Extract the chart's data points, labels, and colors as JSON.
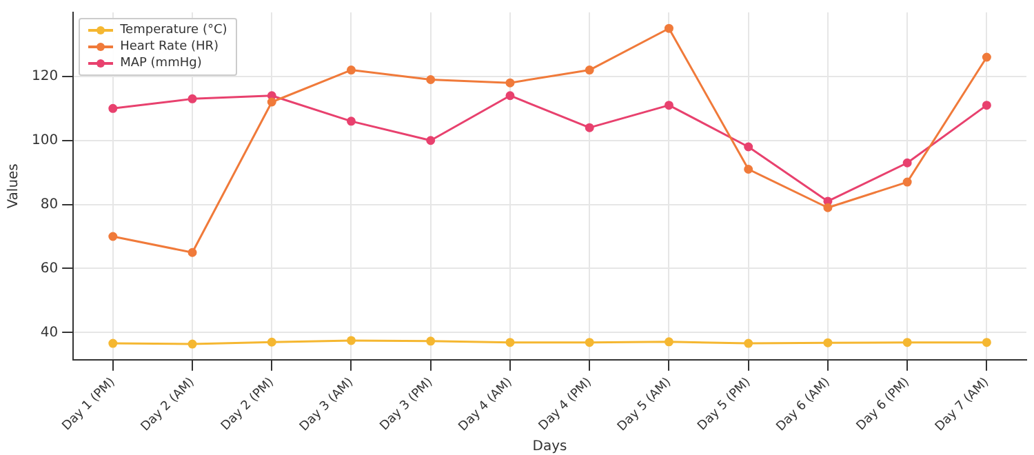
{
  "chart_data": {
    "type": "line",
    "xlabel": "Days",
    "ylabel": "Values",
    "categories": [
      "Day 1 (PM)",
      "Day 2 (AM)",
      "Day 2 (PM)",
      "Day 3 (AM)",
      "Day 3 (PM)",
      "Day 4 (AM)",
      "Day 4 (PM)",
      "Day 5 (AM)",
      "Day 5 (PM)",
      "Day 6 (AM)",
      "Day 6 (PM)",
      "Day 7 (AM)"
    ],
    "series": [
      {
        "name": "Temperature (°C)",
        "color": "#f5b731",
        "values": [
          36.6,
          36.4,
          37.0,
          37.5,
          37.3,
          36.9,
          36.9,
          37.1,
          36.6,
          36.8,
          36.9,
          36.9
        ]
      },
      {
        "name": "Heart Rate (HR)",
        "color": "#f07a3a",
        "values": [
          70,
          65,
          112,
          122,
          119,
          118,
          122,
          135,
          91,
          79,
          87,
          126
        ]
      },
      {
        "name": "MAP (mmHg)",
        "color": "#e8416e",
        "values": [
          110,
          113,
          114,
          106,
          100,
          114,
          104,
          111,
          98,
          81,
          93,
          111
        ]
      }
    ],
    "ylim": [
      31.5,
      140
    ],
    "yticks": [
      40,
      60,
      80,
      100,
      120
    ],
    "grid": true,
    "legend": "top left",
    "marker": "circle",
    "line_style": "solid"
  }
}
